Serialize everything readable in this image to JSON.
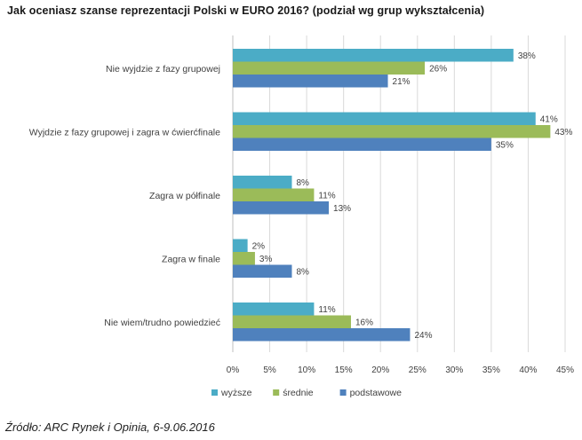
{
  "title": "Jak oceniasz szanse reprezentacji Polski w EURO 2016? (podział wg grup wykształcenia)",
  "source": "Źródło: ARC Rynek i Opinia, 6-9.06.2016",
  "colors": {
    "wyzsze": "#4BACC6",
    "srednie": "#9BBB59",
    "podstawowe": "#4F81BD",
    "grid": "#d9d9d9"
  },
  "chart_data": {
    "type": "bar",
    "orientation": "horizontal",
    "title": "Jak oceniasz szanse reprezentacji Polski w EURO 2016? (podział wg grup wykształcenia)",
    "categories": [
      "Nie wyjdzie z fazy grupowej",
      "Wyjdzie z fazy grupowej i zagra w ćwierćfinale",
      "Zagra w półfinale",
      "Zagra w finale",
      "Nie wiem/trudno powiedzieć"
    ],
    "series": [
      {
        "name": "wyższe",
        "color_key": "wyzsze",
        "values": [
          38,
          41,
          8,
          2,
          11
        ]
      },
      {
        "name": "średnie",
        "color_key": "srednie",
        "values": [
          26,
          43,
          11,
          3,
          16
        ]
      },
      {
        "name": "podstawowe",
        "color_key": "podstawowe",
        "values": [
          21,
          35,
          13,
          8,
          24
        ]
      }
    ],
    "value_suffix": "%",
    "xlim": [
      0,
      45
    ],
    "xticks": [
      0,
      5,
      10,
      15,
      20,
      25,
      30,
      35,
      40,
      45
    ],
    "xtick_labels": [
      "0%",
      "5%",
      "10%",
      "15%",
      "20%",
      "25%",
      "30%",
      "35%",
      "40%",
      "45%"
    ],
    "grid": true,
    "legend_position": "bottom"
  }
}
